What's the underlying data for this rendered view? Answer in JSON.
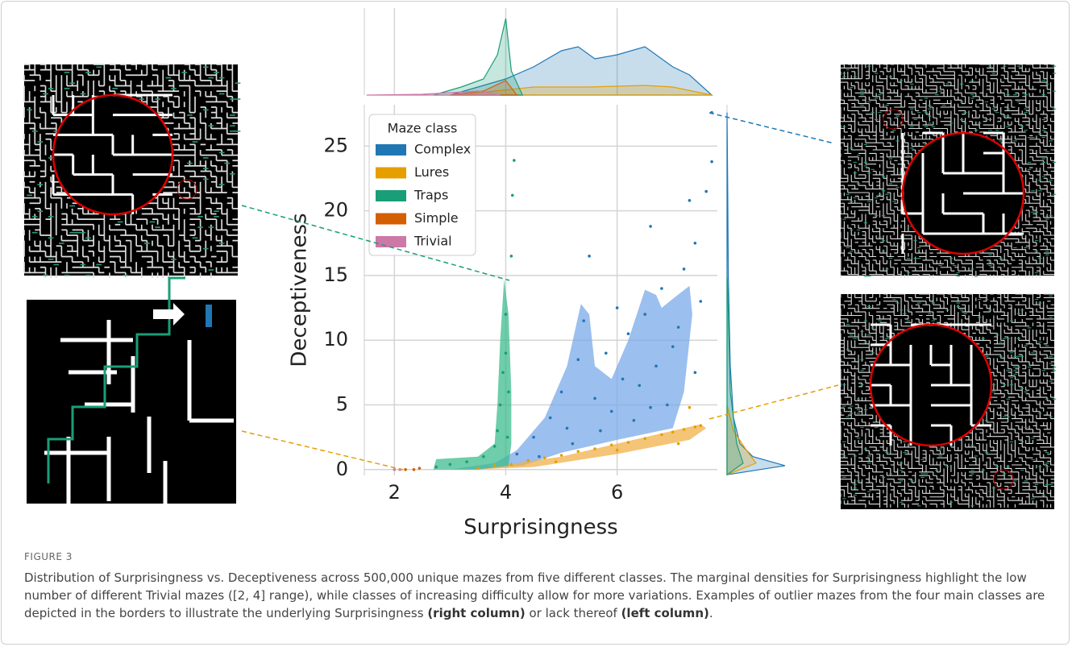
{
  "chart_data": {
    "type": "scatter",
    "x_label": "Surprisingness",
    "y_label": "Deceptiveness",
    "xlim": [
      1.46,
      7.8
    ],
    "ylim": [
      -0.45,
      28.2
    ],
    "xticks": [
      2,
      4,
      6
    ],
    "yticks": [
      0,
      5,
      10,
      15,
      20,
      25
    ],
    "grid": true,
    "legend_title": "Maze class",
    "legend": "upper left",
    "series": [
      {
        "name": "Complex",
        "color": "#1f77b4",
        "x": [
          4.2,
          4.5,
          4.8,
          5.0,
          5.1,
          5.3,
          5.4,
          5.5,
          5.6,
          5.8,
          5.9,
          6.0,
          6.1,
          6.2,
          6.3,
          6.4,
          6.5,
          6.6,
          6.7,
          6.8,
          6.9,
          7.0,
          7.1,
          7.2,
          7.3,
          7.4,
          7.5,
          7.6,
          7.7,
          7.7,
          5.2,
          5.7,
          6.6,
          7.4,
          4.6
        ],
        "y": [
          1.2,
          2.5,
          4.0,
          6.0,
          3.2,
          8.5,
          11.5,
          16.5,
          5.5,
          9.0,
          4.5,
          12.5,
          7.0,
          10.5,
          3.8,
          6.5,
          12.0,
          18.8,
          8.0,
          14.0,
          5.0,
          9.5,
          11.0,
          15.5,
          20.8,
          17.5,
          13.0,
          21.5,
          27.6,
          23.8,
          2.0,
          3.0,
          4.8,
          7.5,
          1.0
        ]
      },
      {
        "name": "Lures",
        "color": "#e69f00",
        "x": [
          3.5,
          3.8,
          4.1,
          4.4,
          4.7,
          5.0,
          5.3,
          5.6,
          5.9,
          6.2,
          6.5,
          6.8,
          7.0,
          7.2,
          7.4,
          7.5,
          4.9,
          6.0,
          7.3,
          7.1
        ],
        "y": [
          0.1,
          0.3,
          0.4,
          0.7,
          0.9,
          1.1,
          1.4,
          1.6,
          1.9,
          2.1,
          2.4,
          2.7,
          2.9,
          3.1,
          3.3,
          3.4,
          0.6,
          1.5,
          4.8,
          2.0
        ]
      },
      {
        "name": "Traps",
        "color": "#1a9e77",
        "x": [
          2.75,
          3.0,
          3.3,
          3.6,
          3.8,
          3.85,
          3.9,
          3.95,
          4.0,
          4.0,
          4.05,
          4.1,
          4.12,
          4.15,
          4.03
        ],
        "y": [
          0.2,
          0.4,
          0.6,
          1.0,
          1.8,
          3.0,
          5.0,
          7.5,
          9.0,
          12.0,
          6.0,
          16.5,
          21.2,
          23.9,
          2.5
        ]
      },
      {
        "name": "Simple",
        "color": "#d55e00",
        "x": [
          2.2,
          2.35,
          2.45
        ],
        "y": [
          0.0,
          0.0,
          0.1
        ]
      },
      {
        "name": "Trivial",
        "color": "#cc79a7",
        "x": [
          2.0,
          2.1
        ],
        "y": [
          0.0,
          0.0
        ]
      }
    ],
    "density_regions": [
      {
        "series": "Complex",
        "color": "#7aa9e8",
        "x": [
          3.0,
          3.8,
          4.2,
          4.7,
          5.1,
          5.35,
          5.5,
          5.6,
          5.9,
          6.2,
          6.5,
          6.7,
          6.8,
          7.0,
          7.3,
          7.35,
          7.2,
          7.0,
          6.0,
          5.0,
          4.3,
          3.5
        ],
        "y": [
          0,
          0.5,
          1.5,
          4,
          8,
          12.8,
          12,
          8,
          7,
          10,
          13.9,
          13.5,
          12.5,
          13.2,
          14.2,
          12,
          6,
          3.2,
          2.3,
          1.3,
          0.3,
          0
        ]
      },
      {
        "series": "Lures",
        "color": "#f0b04a",
        "x": [
          3.4,
          5.0,
          6.5,
          7.5,
          7.6,
          7.3,
          6.0,
          4.5
        ],
        "y": [
          0,
          1,
          2.5,
          3.5,
          3.2,
          2.3,
          1.2,
          0.2
        ]
      },
      {
        "series": "Traps",
        "color": "#3dbc8e",
        "x": [
          2.7,
          2.75,
          3.5,
          3.8,
          3.85,
          3.9,
          3.97,
          4.05,
          4.1,
          4.1,
          4.05,
          3.5
        ],
        "y": [
          0,
          0.8,
          1,
          2,
          5,
          10,
          14.7,
          12,
          6,
          2,
          0.3,
          0
        ]
      }
    ],
    "marginal_x": {
      "lim": [
        0,
        1
      ],
      "curves": [
        {
          "series": "Complex",
          "color": "#1f77b4",
          "x": [
            3.0,
            3.5,
            4.0,
            4.5,
            5.0,
            5.3,
            5.6,
            6.0,
            6.5,
            7.0,
            7.3,
            7.7
          ],
          "y": [
            0,
            0.1,
            0.2,
            0.35,
            0.55,
            0.6,
            0.45,
            0.5,
            0.6,
            0.35,
            0.25,
            0
          ]
        },
        {
          "series": "Lures",
          "color": "#e69f00",
          "x": [
            3.2,
            3.8,
            4.5,
            5.5,
            6.5,
            7.0,
            7.7
          ],
          "y": [
            0,
            0.05,
            0.1,
            0.1,
            0.12,
            0.1,
            0
          ]
        },
        {
          "series": "Traps",
          "color": "#1a9e77",
          "x": [
            2.7,
            3.2,
            3.6,
            3.85,
            4.0,
            4.1,
            4.3
          ],
          "y": [
            0,
            0.1,
            0.2,
            0.5,
            0.95,
            0.3,
            0
          ]
        },
        {
          "series": "Simple",
          "color": "#d55e00",
          "x": [
            3.0,
            3.6,
            4.0,
            4.2
          ],
          "y": [
            0,
            0.05,
            0.18,
            0
          ]
        },
        {
          "series": "Trivial",
          "color": "#cc79a7",
          "x": [
            1.5,
            2.5,
            3.5,
            3.9
          ],
          "y": [
            0,
            0.01,
            0.05,
            0
          ]
        }
      ]
    },
    "marginal_y": {
      "lim": [
        0,
        1
      ],
      "curves": [
        {
          "series": "Complex",
          "color": "#1f77b4",
          "y": [
            -0.4,
            0.3,
            1,
            2,
            4,
            8,
            15,
            22,
            27.6
          ],
          "x": [
            0,
            0.9,
            0.4,
            0.2,
            0.1,
            0.05,
            0.02,
            0.01,
            0
          ]
        },
        {
          "series": "Lures",
          "color": "#e69f00",
          "y": [
            -0.4,
            0.5,
            1.5,
            3,
            5
          ],
          "x": [
            0,
            0.45,
            0.3,
            0.1,
            0
          ]
        },
        {
          "series": "Traps",
          "color": "#1a9e77",
          "y": [
            -0.4,
            0.5,
            2,
            6,
            14,
            15
          ],
          "x": [
            0,
            0.25,
            0.15,
            0.05,
            0.01,
            0
          ]
        }
      ]
    }
  },
  "caption": {
    "label": "FIGURE 3",
    "text": "Distribution of Surprisingness vs. Deceptiveness across 500,000 unique mazes from five different classes. The marginal densities for Surprisingness highlight the low number of different Trivial mazes ([2, 4] range), while classes of increasing difficulty allow for more variations. Examples of outlier mazes from the four main classes are depicted in the borders to illustrate the underlying Surprisingness",
    "bold1": "(right column)",
    "mid": " or lack thereof ",
    "bold2": "(left column)",
    "end": "."
  }
}
